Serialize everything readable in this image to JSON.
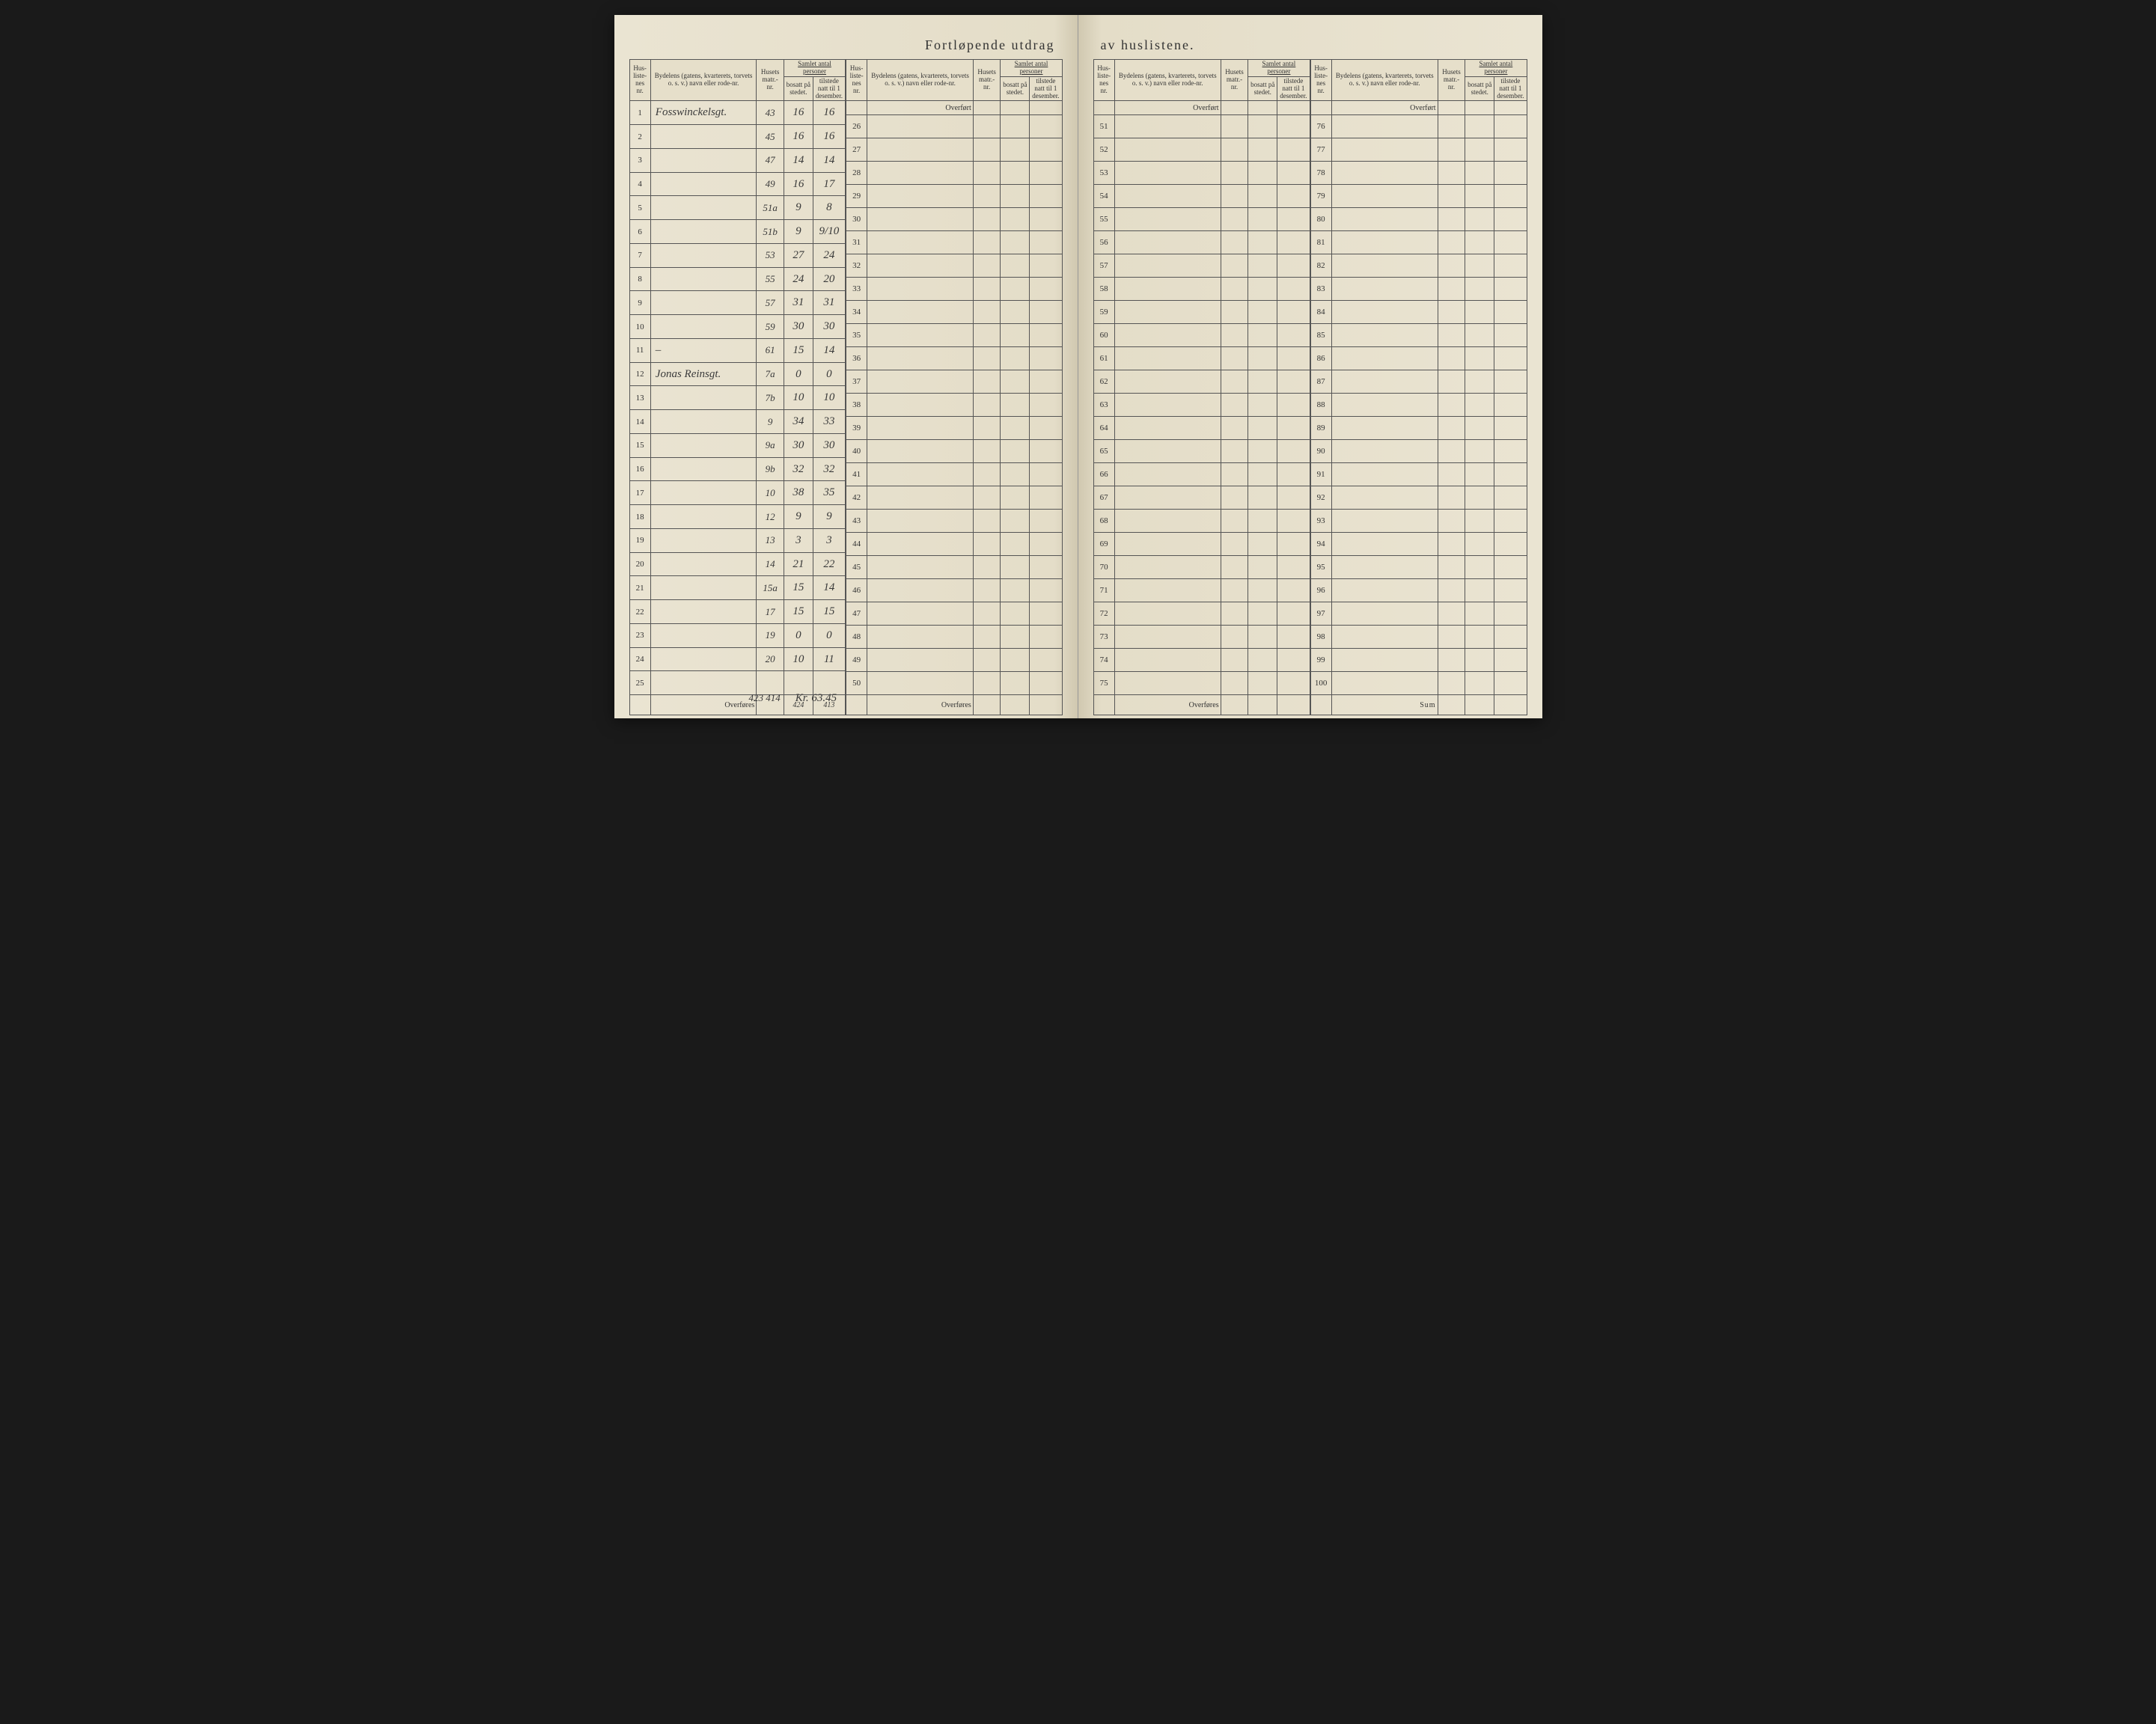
{
  "title_left": "Fortløpende utdrag",
  "title_right": "av huslistene.",
  "headers": {
    "hus_nr": "Hus-\nliste-\nnes\nnr.",
    "bydel": "Bydelens (gatens, kvarterets, torvets o. s. v.) navn eller rode-nr.",
    "husets": "Husets\nmatr.-\nnr.",
    "samlet": "Samlet antal personer",
    "bosatt": "bosatt\npå stedet.",
    "tilstede": "tilstede\nnatt til 1\ndesember."
  },
  "overfort": "Overført",
  "overfores": "Overføres",
  "sum": "Sum",
  "rows_left_a": [
    {
      "nr": "1",
      "name": "Fosswinckelsgt.",
      "matr": "43",
      "bosatt": "16",
      "tilstede": "16"
    },
    {
      "nr": "2",
      "name": "",
      "matr": "45",
      "bosatt": "16",
      "tilstede": "16"
    },
    {
      "nr": "3",
      "name": "",
      "matr": "47",
      "bosatt": "14",
      "tilstede": "14"
    },
    {
      "nr": "4",
      "name": "",
      "matr": "49",
      "bosatt": "16",
      "tilstede": "17"
    },
    {
      "nr": "5",
      "name": "",
      "matr": "51a",
      "bosatt": "9",
      "tilstede": "8"
    },
    {
      "nr": "6",
      "name": "",
      "matr": "51b",
      "bosatt": "9",
      "tilstede": "9/10"
    },
    {
      "nr": "7",
      "name": "",
      "matr": "53",
      "bosatt": "27",
      "tilstede": "24"
    },
    {
      "nr": "8",
      "name": "",
      "matr": "55",
      "bosatt": "24",
      "tilstede": "20"
    },
    {
      "nr": "9",
      "name": "",
      "matr": "57",
      "bosatt": "31",
      "tilstede": "31"
    },
    {
      "nr": "10",
      "name": "",
      "matr": "59",
      "bosatt": "30",
      "tilstede": "30"
    },
    {
      "nr": "11",
      "name": "–",
      "matr": "61",
      "bosatt": "15",
      "tilstede": "14"
    },
    {
      "nr": "12",
      "name": "Jonas Reinsgt.",
      "matr": "7a",
      "bosatt": "0",
      "tilstede": "0"
    },
    {
      "nr": "13",
      "name": "",
      "matr": "7b",
      "bosatt": "10",
      "tilstede": "10"
    },
    {
      "nr": "14",
      "name": "",
      "matr": "9",
      "bosatt": "34",
      "tilstede": "33"
    },
    {
      "nr": "15",
      "name": "",
      "matr": "9a",
      "bosatt": "30",
      "tilstede": "30"
    },
    {
      "nr": "16",
      "name": "",
      "matr": "9b",
      "bosatt": "32",
      "tilstede": "32"
    },
    {
      "nr": "17",
      "name": "",
      "matr": "10",
      "bosatt": "38",
      "tilstede": "35"
    },
    {
      "nr": "18",
      "name": "",
      "matr": "12",
      "bosatt": "9",
      "tilstede": "9"
    },
    {
      "nr": "19",
      "name": "",
      "matr": "13",
      "bosatt": "3",
      "tilstede": "3"
    },
    {
      "nr": "20",
      "name": "",
      "matr": "14",
      "bosatt": "21",
      "tilstede": "22"
    },
    {
      "nr": "21",
      "name": "",
      "matr": "15a",
      "bosatt": "15",
      "tilstede": "14"
    },
    {
      "nr": "22",
      "name": "",
      "matr": "17",
      "bosatt": "15",
      "tilstede": "15"
    },
    {
      "nr": "23",
      "name": "",
      "matr": "19",
      "bosatt": "0",
      "tilstede": "0"
    },
    {
      "nr": "24",
      "name": "",
      "matr": "20",
      "bosatt": "10",
      "tilstede": "11"
    },
    {
      "nr": "25",
      "name": "",
      "matr": "",
      "bosatt": "",
      "tilstede": ""
    }
  ],
  "rows_left_b_start": 26,
  "rows_right_a_start": 51,
  "rows_right_b_start": 76,
  "totals": {
    "bosatt": "424",
    "tilstede": "413"
  },
  "scribble1": "423 414",
  "scribble2": "Kr. 63.45"
}
